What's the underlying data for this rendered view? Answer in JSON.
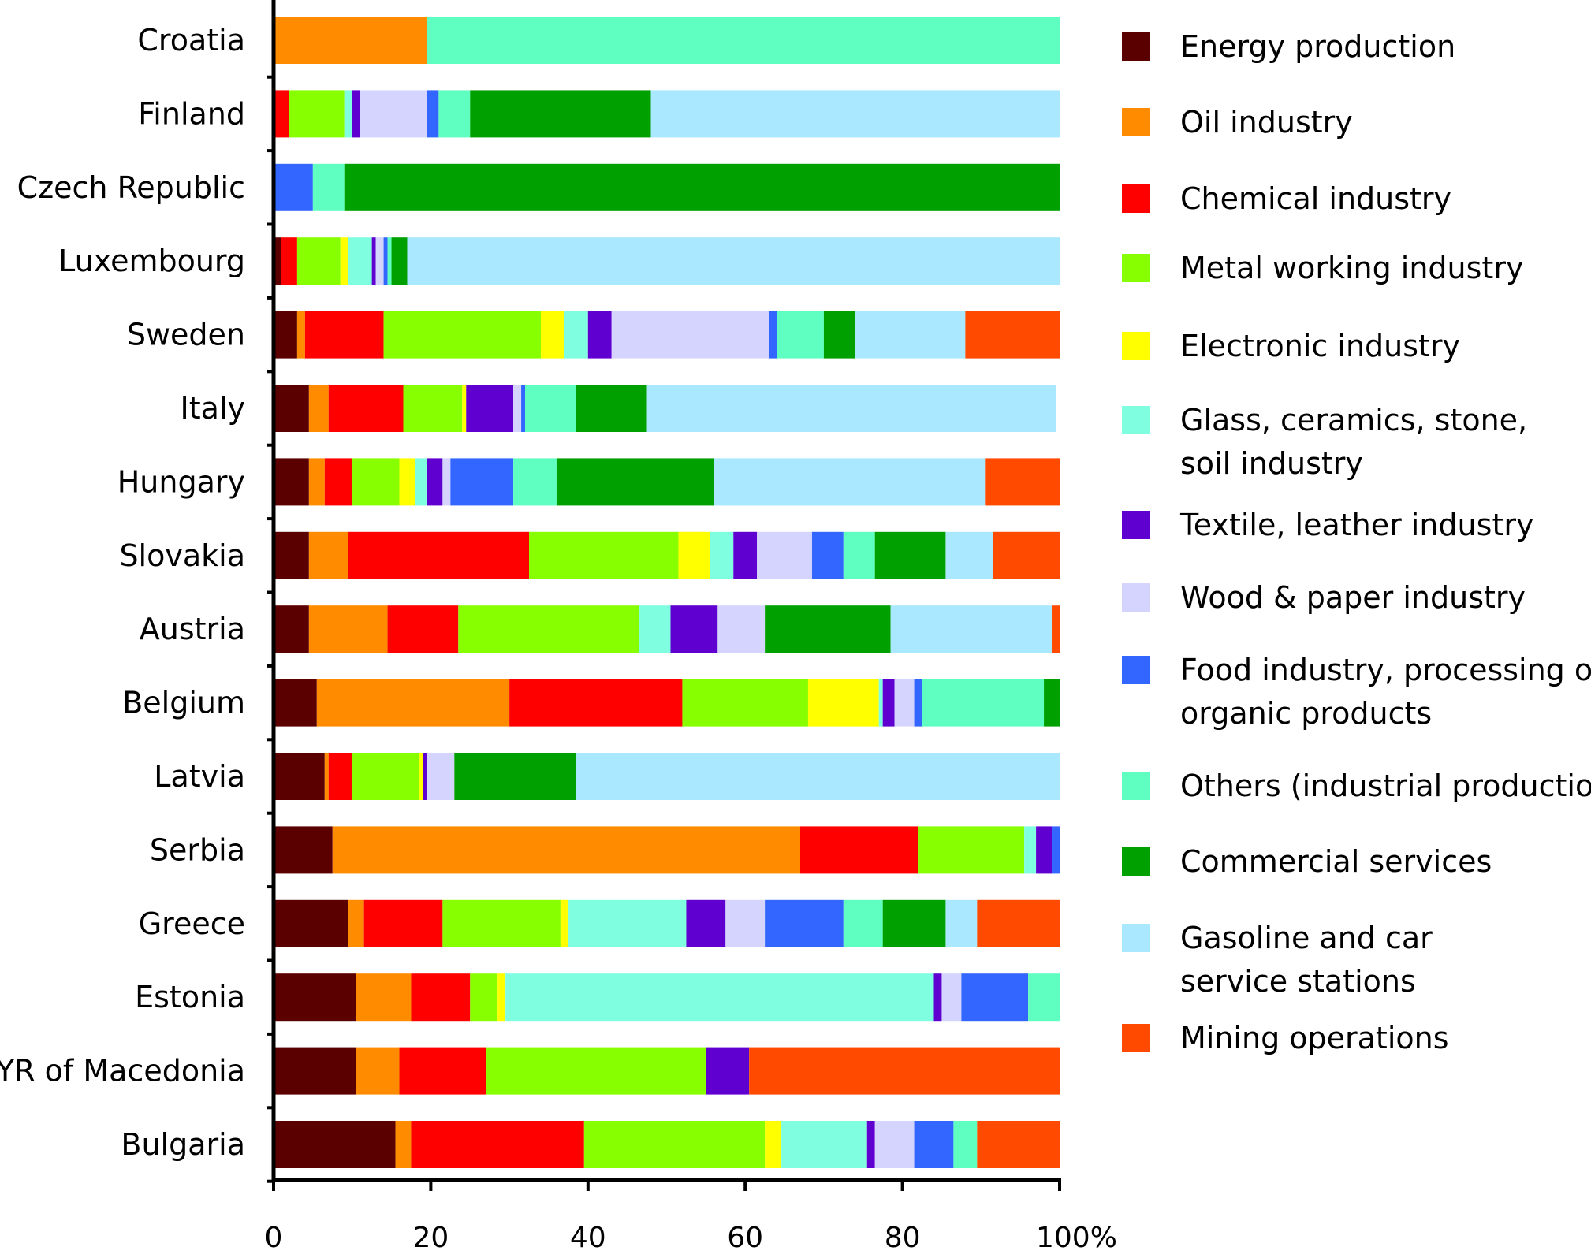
{
  "chart_data": {
    "type": "bar",
    "orientation": "horizontal",
    "stacked": true,
    "normalized": true,
    "title": "",
    "xlabel": "",
    "ylabel": "",
    "xlim": [
      0,
      100
    ],
    "x_ticks": [
      "0",
      "20",
      "40",
      "60",
      "80",
      "100%"
    ],
    "grid": false,
    "legend_position": "right",
    "categories": [
      "Croatia",
      "Finland",
      "Czech Republic",
      "Luxembourg",
      "Sweden",
      "Italy",
      "Hungary",
      "Slovakia",
      "Austria",
      "Belgium",
      "Latvia",
      "Serbia",
      "Greece",
      "Estonia",
      "FYR of Macedonia",
      "Bulgaria"
    ],
    "series": [
      {
        "name": "Energy production",
        "color": "#5a0000",
        "values": [
          0,
          0,
          0,
          1,
          3,
          4.5,
          4.5,
          4.5,
          4.5,
          5.5,
          6.5,
          7.5,
          9.5,
          10.5,
          10.5,
          15.5
        ]
      },
      {
        "name": "Oil industry",
        "color": "#ff8c00",
        "values": [
          19.5,
          0,
          0,
          0,
          1,
          2.5,
          2,
          5,
          10,
          24.5,
          0.5,
          59.5,
          2,
          7,
          5.5,
          2
        ]
      },
      {
        "name": "Chemical industry",
        "color": "#ff0000",
        "values": [
          0,
          2,
          0,
          2,
          10,
          9.5,
          3.5,
          23,
          9,
          22,
          3,
          15,
          10,
          7.5,
          11,
          22
        ]
      },
      {
        "name": "Metal working industry",
        "color": "#88ff00",
        "values": [
          0,
          7,
          0,
          5.5,
          20,
          7.5,
          6,
          19,
          23,
          16,
          8.5,
          13.5,
          15,
          3.5,
          28,
          23
        ]
      },
      {
        "name": "Electronic industry",
        "color": "#ffff00",
        "values": [
          0,
          0,
          0,
          1,
          3,
          0.5,
          2,
          4,
          0,
          9,
          0.5,
          0,
          1,
          1,
          0,
          2
        ]
      },
      {
        "name": "Glass, ceramics, stone, soil industry",
        "color": "#80ffe0",
        "values": [
          0,
          1,
          0,
          3,
          3,
          0,
          1.5,
          3,
          4,
          0.5,
          0,
          1.5,
          15,
          54.5,
          0,
          11
        ]
      },
      {
        "name": "Textile, leather industry",
        "color": "#6000d0",
        "values": [
          0,
          1,
          0,
          0.5,
          3,
          6,
          2,
          3,
          6,
          1.5,
          0.5,
          2,
          5,
          1,
          5.5,
          1
        ]
      },
      {
        "name": "Wood & paper industry",
        "color": "#d4d4ff",
        "values": [
          0,
          8.5,
          0,
          1,
          20,
          1,
          1,
          7,
          6,
          2.5,
          3.5,
          0,
          5,
          2.5,
          0,
          5
        ]
      },
      {
        "name": "Food industry, processing of organic products",
        "color": "#3366ff",
        "values": [
          0,
          1.5,
          5,
          0.5,
          1,
          0.5,
          8,
          4,
          0,
          1,
          0,
          1,
          10,
          8.5,
          0,
          5
        ]
      },
      {
        "name": "Others (industrial production)",
        "color": "#5effc0",
        "values": [
          80.5,
          4,
          4,
          0.5,
          6,
          6.5,
          5.5,
          4,
          0,
          15.5,
          0,
          0,
          5,
          4,
          0,
          3
        ]
      },
      {
        "name": "Commercial services",
        "color": "#00a000",
        "values": [
          0,
          23,
          91,
          2,
          4,
          9,
          20,
          9,
          16,
          2,
          15.5,
          0,
          8,
          0,
          0,
          0
        ]
      },
      {
        "name": "Gasoline and car service stations",
        "color": "#aae8ff",
        "values": [
          0,
          52,
          0,
          84,
          14,
          52,
          34.5,
          6,
          20.5,
          0,
          61.5,
          0,
          4,
          0,
          0,
          0
        ]
      },
      {
        "name": "Mining operations",
        "color": "#ff4a00",
        "values": [
          0,
          0,
          0,
          0,
          12,
          0,
          9.5,
          8.5,
          1,
          0,
          0,
          0,
          10.5,
          0,
          39.5,
          10.5
        ]
      }
    ]
  },
  "legend": {
    "items": [
      {
        "lines": [
          "Energy production"
        ]
      },
      {
        "lines": [
          "Oil industry"
        ]
      },
      {
        "lines": [
          "Chemical industry"
        ]
      },
      {
        "lines": [
          "Metal working industry"
        ]
      },
      {
        "lines": [
          "Electronic industry"
        ]
      },
      {
        "lines": [
          "Glass, ceramics, stone,",
          "soil industry"
        ]
      },
      {
        "lines": [
          "Textile, leather industry"
        ]
      },
      {
        "lines": [
          "Wood & paper industry"
        ]
      },
      {
        "lines": [
          "Food industry, processing of",
          "organic products"
        ]
      },
      {
        "lines": [
          "Others (industrial production)"
        ]
      },
      {
        "lines": [
          "Commercial services"
        ]
      },
      {
        "lines": [
          "Gasoline and car",
          "service stations"
        ]
      },
      {
        "lines": [
          "Mining operations"
        ]
      }
    ]
  }
}
